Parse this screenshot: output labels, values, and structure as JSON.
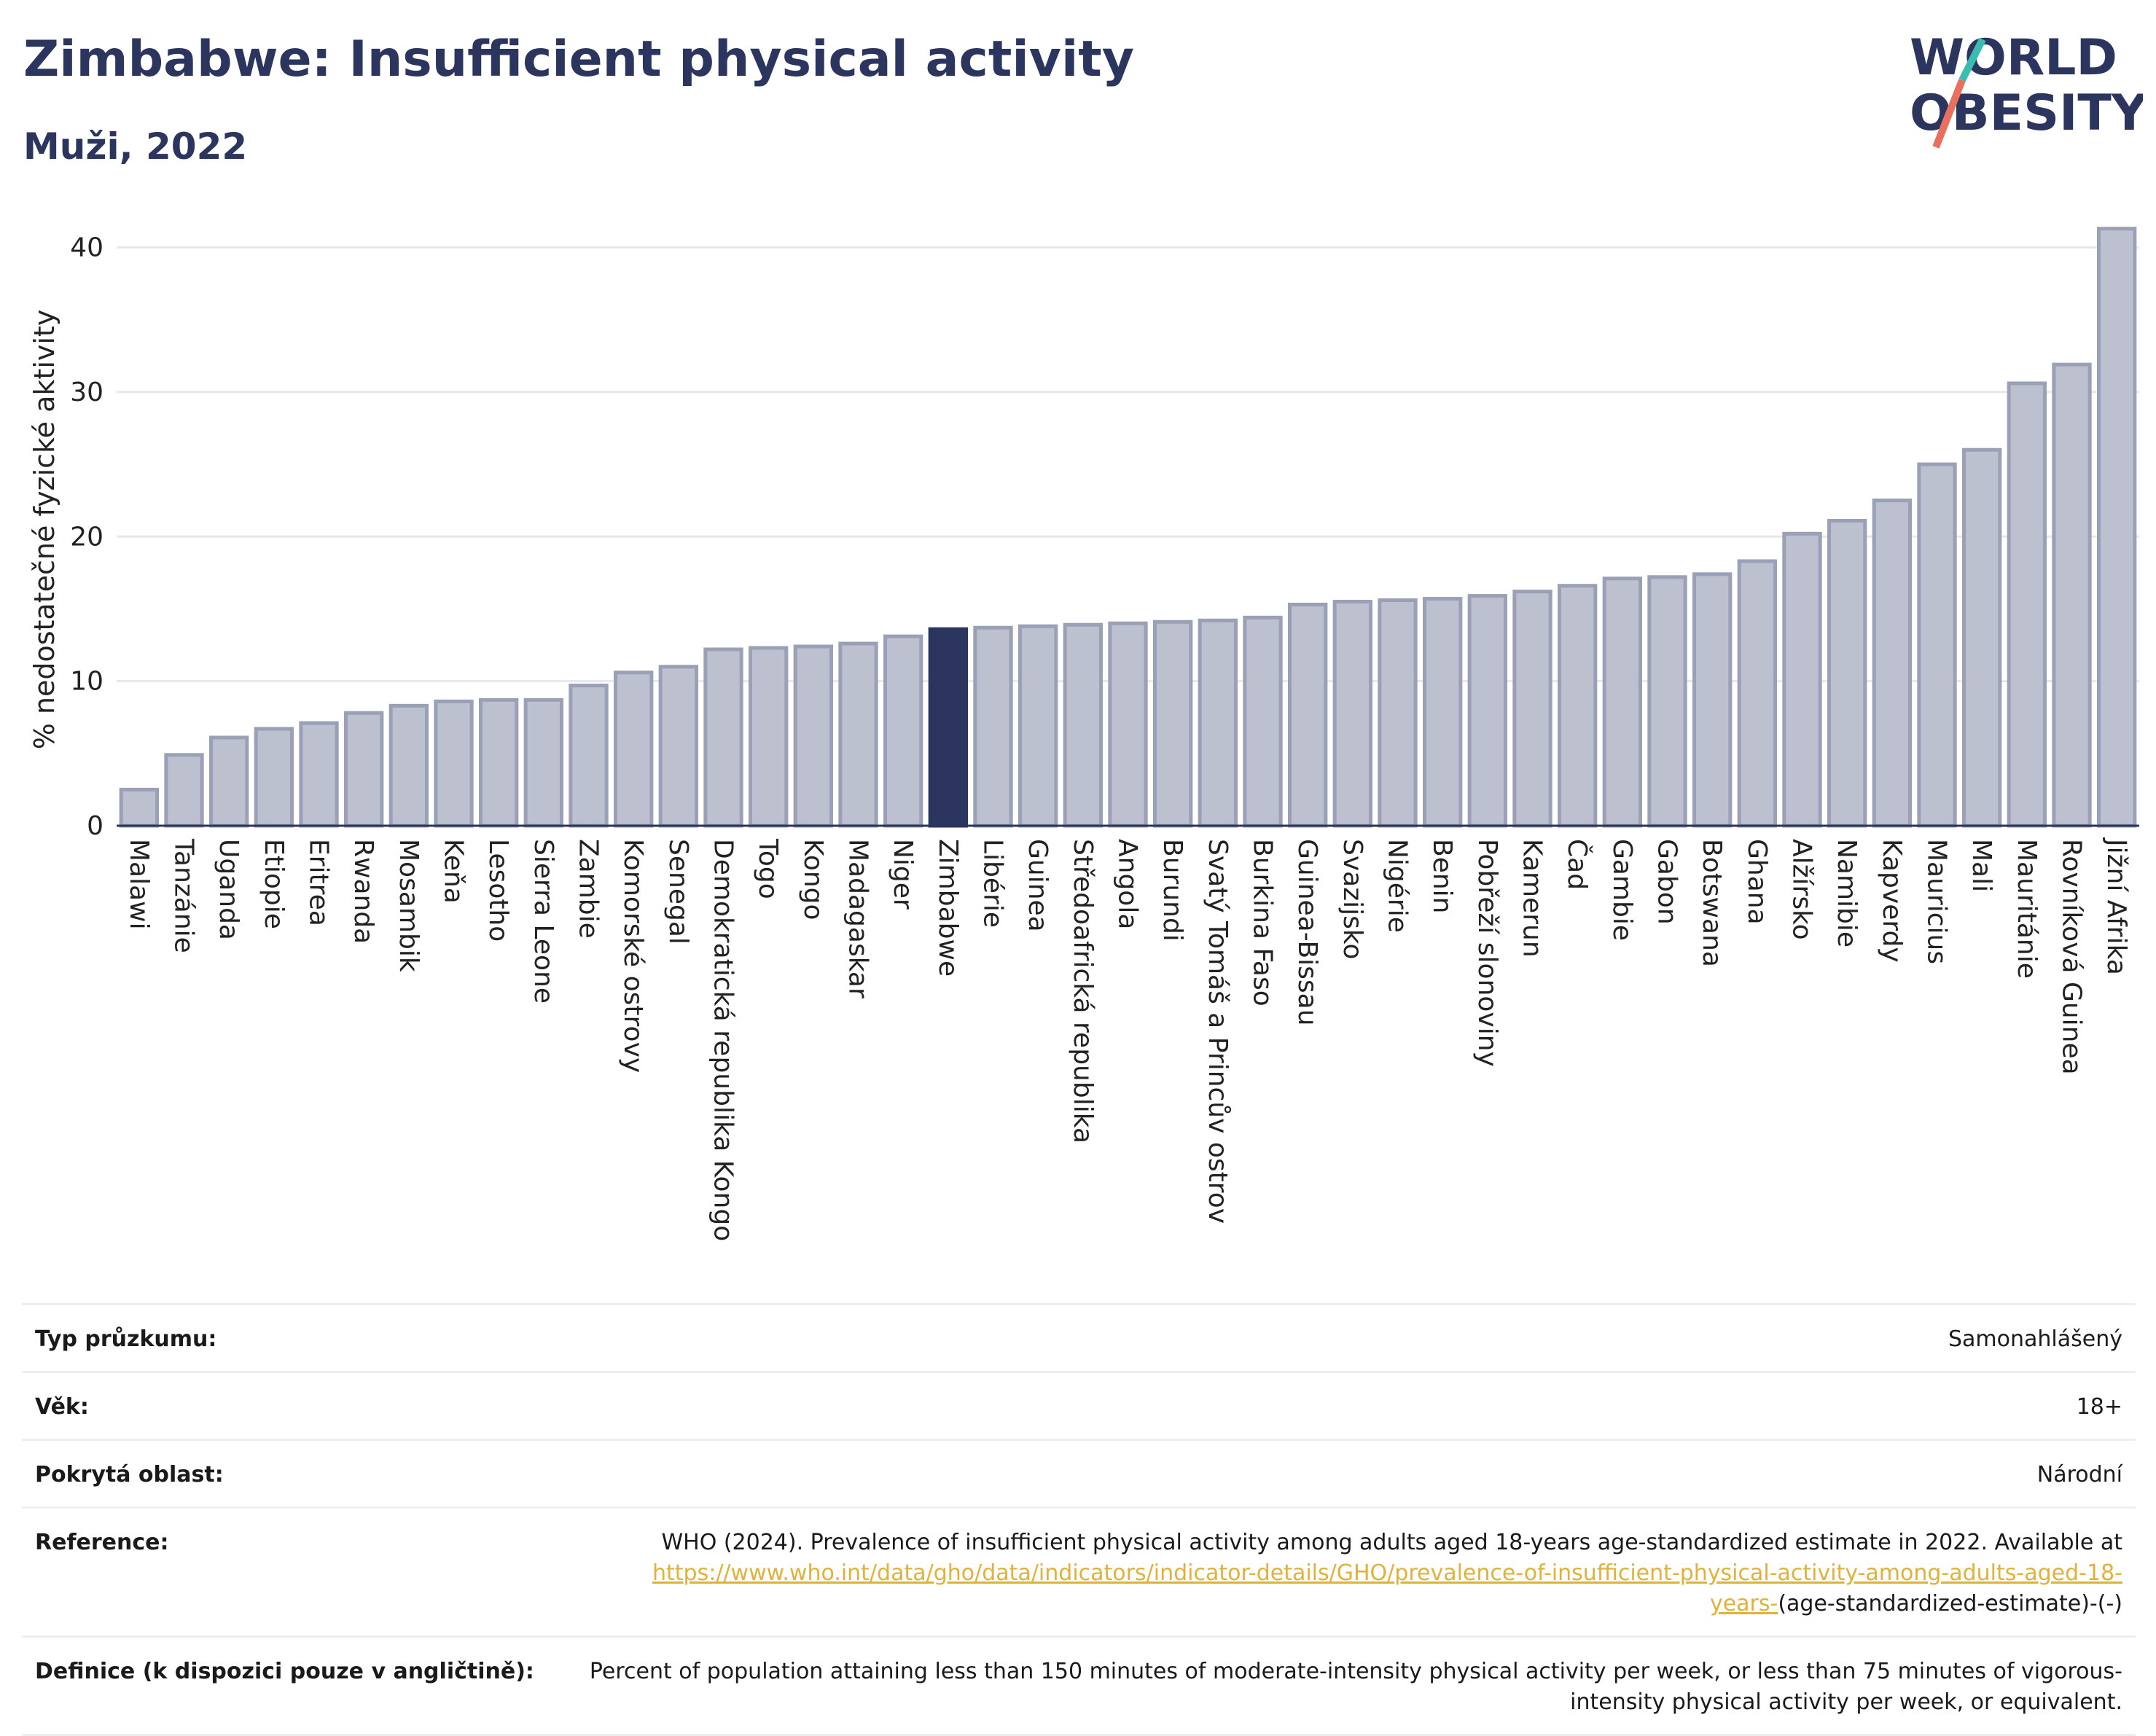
{
  "title": "Zimbabwe: Insufficient physical activity",
  "subtitle": "Muži, 2022",
  "logo": {
    "line1": "WORLD",
    "line2": "OBESITY"
  },
  "colors": {
    "bar": "#bcc0cf",
    "bar_edge": "#9aa0b6",
    "highlight": "#2b355d",
    "logo_teal": "#3bbcb0",
    "logo_coral": "#e8705f",
    "link": "#e0b23a"
  },
  "chart_data": {
    "type": "bar",
    "ylabel": "% nedostatečné fyzické aktivity",
    "ylim": [
      0,
      43
    ],
    "yticks": [
      0,
      10,
      20,
      30,
      40
    ],
    "grid": true,
    "highlight": "Zimbabwe",
    "categories": [
      "Malawi",
      "Tanzánie",
      "Uganda",
      "Etiopie",
      "Eritrea",
      "Rwanda",
      "Mosambik",
      "Keňa",
      "Lesotho",
      "Sierra Leone",
      "Zambie",
      "Komorské ostrovy",
      "Senegal",
      "Demokratická republika Kongo",
      "Togo",
      "Kongo",
      "Madagaskar",
      "Niger",
      "Zimbabwe",
      "Libérie",
      "Guinea",
      "Středoafrická republika",
      "Angola",
      "Burundi",
      "Svatý Tomáš a Princův ostrov",
      "Burkina Faso",
      "Guinea-Bissau",
      "Svazijsko",
      "Nigérie",
      "Benin",
      "Pobřeží slonoviny",
      "Kamerun",
      "Čad",
      "Gambie",
      "Gabon",
      "Botswana",
      "Ghana",
      "Alžírsko",
      "Namibie",
      "Kapverdy",
      "Mauricius",
      "Mali",
      "Mauritánie",
      "Rovníková Guinea",
      "Jižní Afrika"
    ],
    "values": [
      2.5,
      4.9,
      6.1,
      6.7,
      7.1,
      7.8,
      8.3,
      8.6,
      8.7,
      8.7,
      9.7,
      10.6,
      11.0,
      12.2,
      12.3,
      12.4,
      12.6,
      13.1,
      13.6,
      13.7,
      13.8,
      13.9,
      14.0,
      14.1,
      14.2,
      14.4,
      15.3,
      15.5,
      15.6,
      15.7,
      15.9,
      16.2,
      16.6,
      17.1,
      17.2,
      17.4,
      18.3,
      20.2,
      21.1,
      22.5,
      25.0,
      26.0,
      30.6,
      31.9,
      41.3
    ]
  },
  "meta": [
    {
      "label": "Typ průzkumu:",
      "value": "Samonahlášený"
    },
    {
      "label": "Věk:",
      "value": "18+"
    },
    {
      "label": "Pokrytá oblast:",
      "value": "Národní"
    },
    {
      "label": "Reference:",
      "value_pre": "WHO (2024). Prevalence of insufficient physical activity among adults aged 18-years age-standardized estimate in 2022. Available at",
      "link": "https://www.who.int/data/gho/data/indicators/indicator-details/GHO/prevalence-of-insufficient-physical-activity-among-adults-aged-18-years-",
      "value_post": "(age-standardized-estimate)-(-)"
    },
    {
      "label": "Definice (k dispozici pouze v angličtině):",
      "value": "Percent of population attaining less than 150 minutes of moderate-intensity physical activity per week, or less than 75 minutes of vigorous-intensity physical activity per week, or equivalent."
    }
  ]
}
